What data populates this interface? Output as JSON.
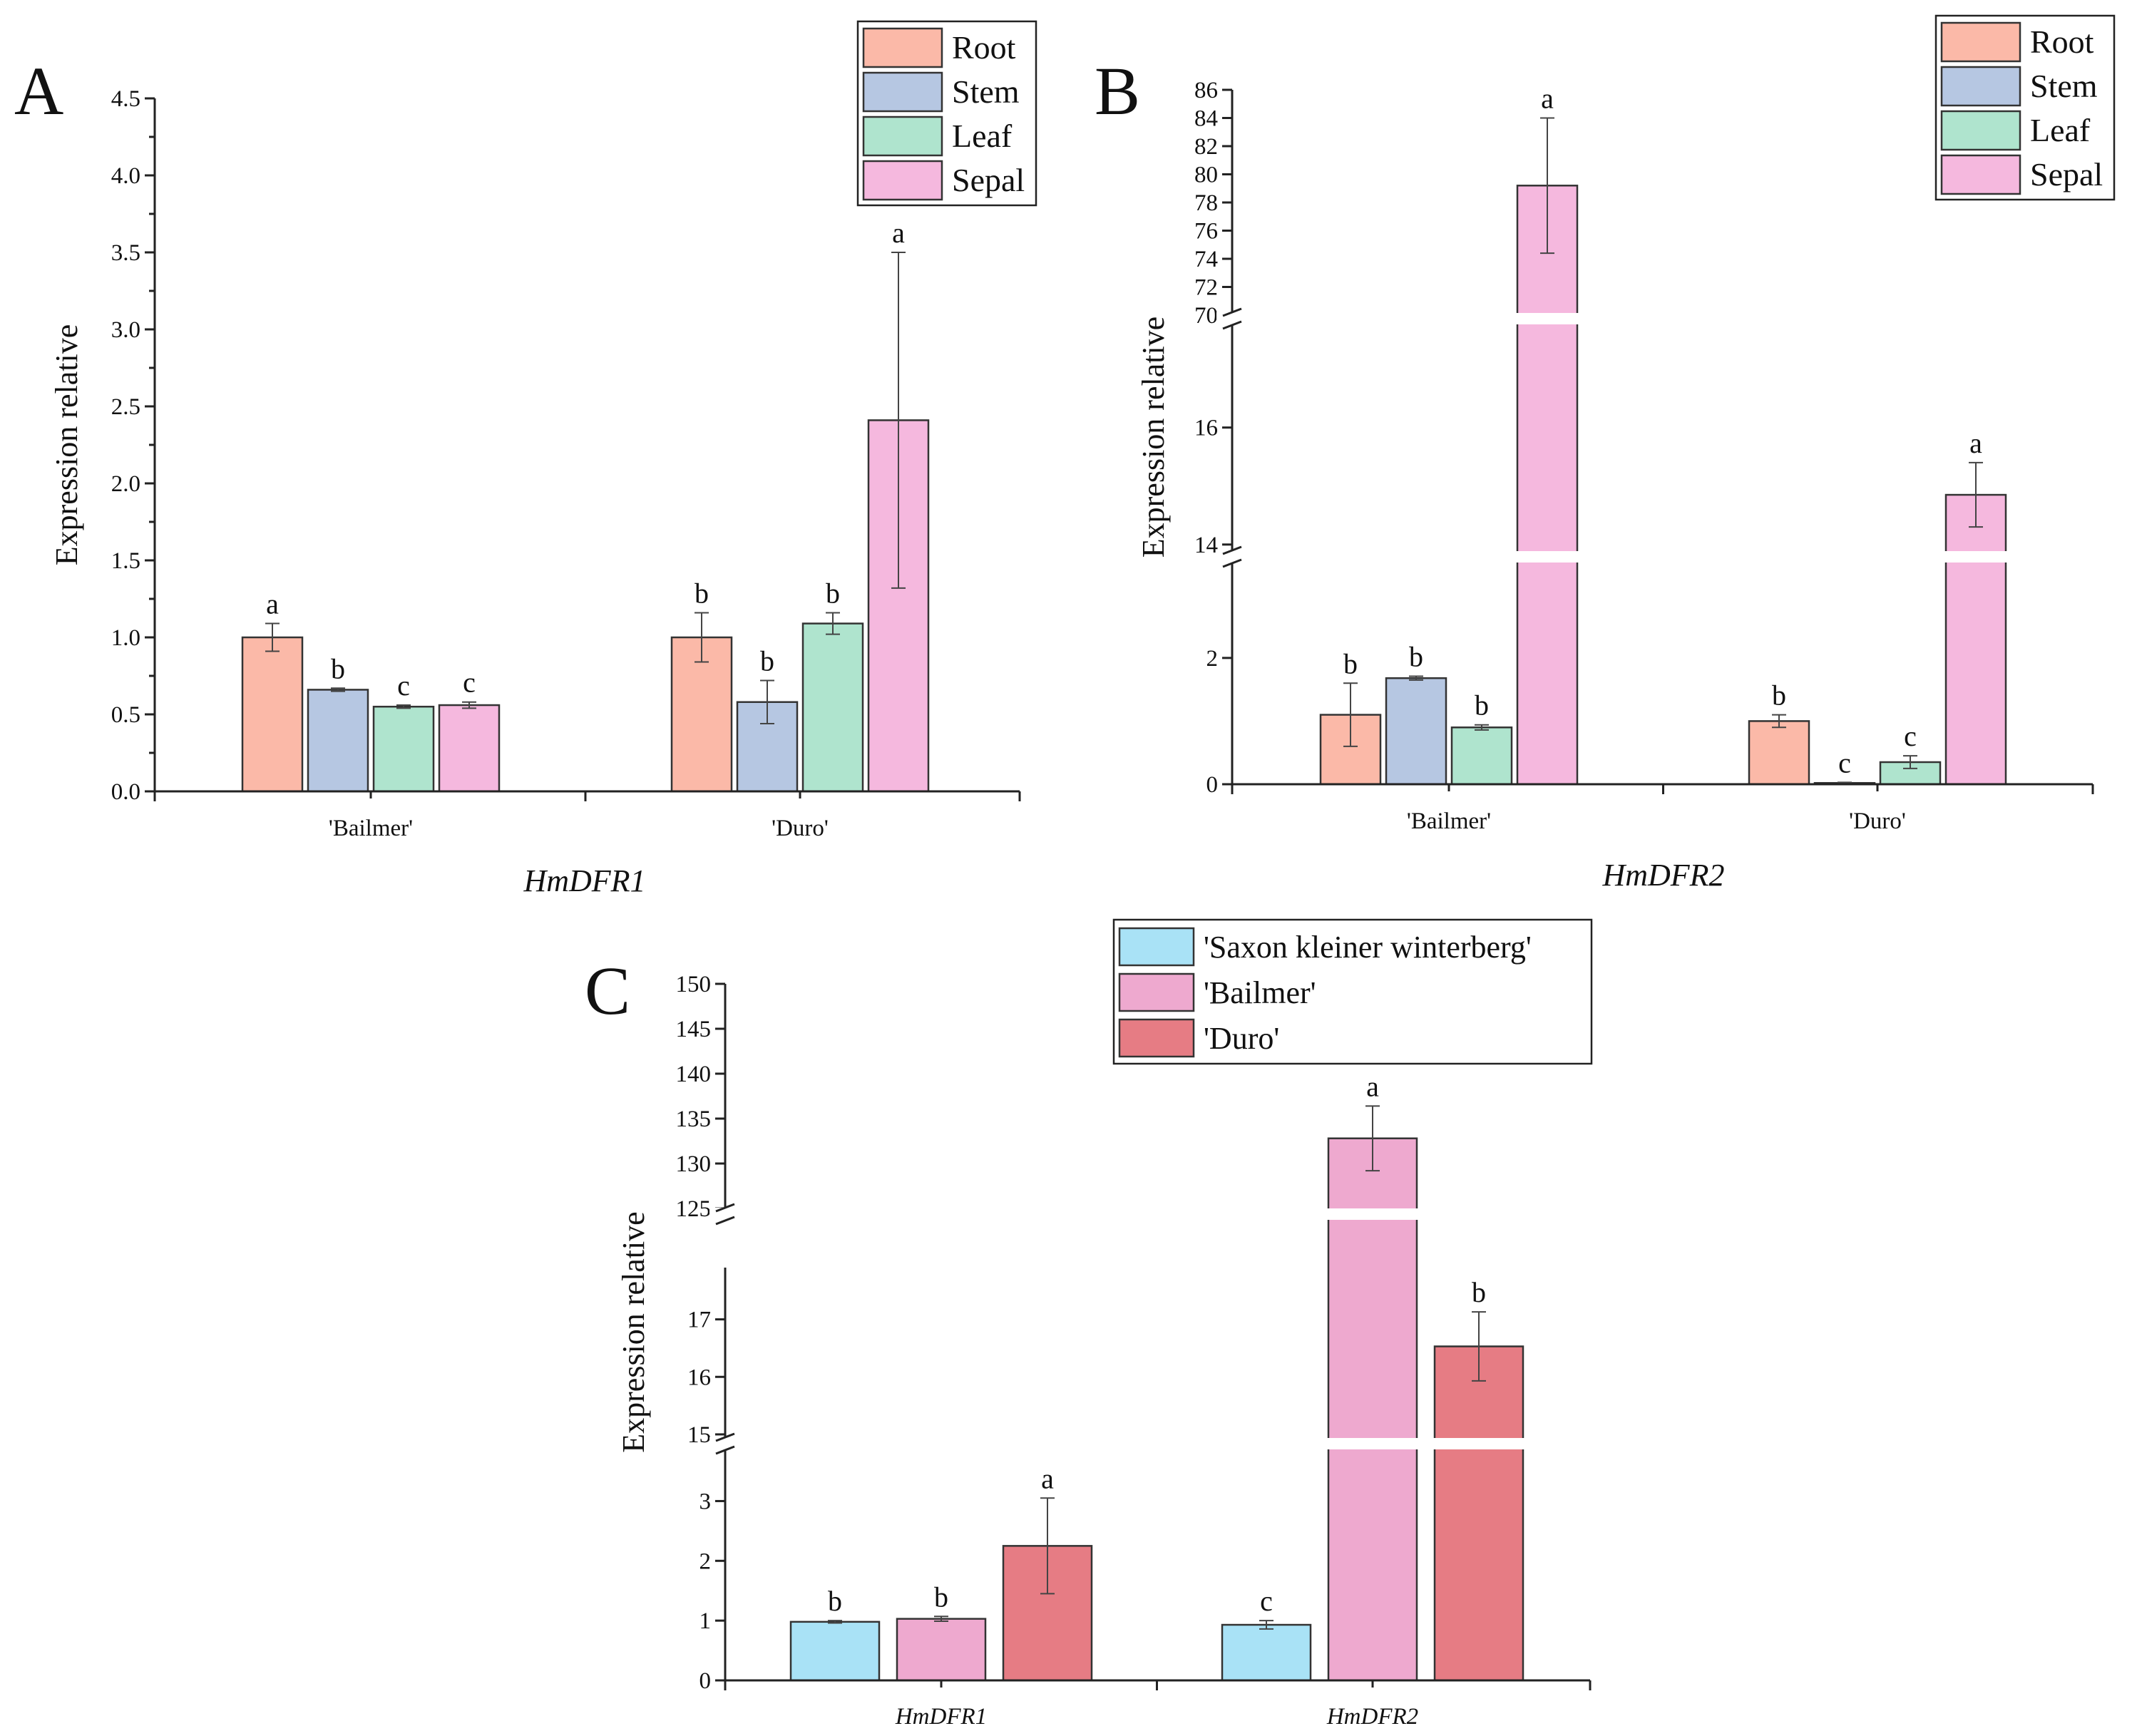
{
  "colors": {
    "root": "#FBB9A8",
    "stem": "#B6C7E2",
    "leaf": "#AFE4CE",
    "sepal": "#F5B8DE",
    "saxon": "#A9E2F6",
    "bailmer": "#EEA9CF",
    "duro": "#E67C84",
    "break_gap": "#ffffff"
  },
  "chart_data": [
    {
      "id": "A",
      "type": "bar",
      "panel_label": "A",
      "title": "",
      "xlabel": "HmDFR1",
      "ylabel": "Expression relative",
      "categories": [
        "'Bailmer'",
        "'Duro'"
      ],
      "ylim": [
        0,
        4.5
      ],
      "yticks": [
        "0.0",
        "0.5",
        "1.0",
        "1.5",
        "2.0",
        "2.5",
        "3.0",
        "3.5",
        "4.0",
        "4.5"
      ],
      "legend_position": "top-right",
      "series": [
        {
          "name": "Root",
          "color_key": "root",
          "values": [
            1.0,
            1.0
          ],
          "errors": [
            0.09,
            0.16
          ],
          "letters": [
            "a",
            "b"
          ]
        },
        {
          "name": "Stem",
          "color_key": "stem",
          "values": [
            0.66,
            0.58
          ],
          "errors": [
            0.01,
            0.14
          ],
          "letters": [
            "b",
            "b"
          ]
        },
        {
          "name": "Leaf",
          "color_key": "leaf",
          "values": [
            0.55,
            1.09
          ],
          "errors": [
            0.01,
            0.07
          ],
          "letters": [
            "c",
            "b"
          ]
        },
        {
          "name": "Sepal",
          "color_key": "sepal",
          "values": [
            0.56,
            2.41
          ],
          "errors": [
            0.02,
            1.09
          ],
          "letters": [
            "c",
            "a"
          ]
        }
      ]
    },
    {
      "id": "B",
      "type": "bar",
      "panel_label": "B",
      "title": "",
      "xlabel": "HmDFR2",
      "ylabel": "Expression relative",
      "categories": [
        "'Bailmer'",
        "'Duro'"
      ],
      "y_segments": [
        {
          "range": [
            0,
            3.5
          ],
          "ticks": [
            "0",
            "2"
          ]
        },
        {
          "range": [
            13.9,
            17.8
          ],
          "ticks": [
            "14",
            "16"
          ]
        },
        {
          "range": [
            70,
            86
          ],
          "ticks": [
            "70",
            "72",
            "74",
            "76",
            "78",
            "80",
            "82",
            "84",
            "86"
          ]
        }
      ],
      "legend_position": "top-right",
      "series": [
        {
          "name": "Root",
          "color_key": "root",
          "values": [
            1.1,
            1.0
          ],
          "errors": [
            0.5,
            0.1
          ],
          "letters": [
            "b",
            "b"
          ]
        },
        {
          "name": "Stem",
          "color_key": "stem",
          "values": [
            1.68,
            0.02
          ],
          "errors": [
            0.03,
            0.01
          ],
          "letters": [
            "b",
            "c"
          ]
        },
        {
          "name": "Leaf",
          "color_key": "leaf",
          "values": [
            0.9,
            0.35
          ],
          "errors": [
            0.04,
            0.1
          ],
          "letters": [
            "b",
            "c"
          ]
        },
        {
          "name": "Sepal",
          "color_key": "sepal",
          "values": [
            79.2,
            14.85
          ],
          "errors": [
            4.8,
            0.55
          ],
          "letters": [
            "a",
            "a"
          ]
        }
      ]
    },
    {
      "id": "C",
      "type": "bar",
      "panel_label": "C",
      "title": "",
      "xlabel": "",
      "ylabel": "Expression relative",
      "categories": [
        "HmDFR1",
        "HmDFR2"
      ],
      "y_segments": [
        {
          "range": [
            0,
            3.9
          ],
          "ticks": [
            "0",
            "1",
            "2",
            "3"
          ]
        },
        {
          "range": [
            14.9,
            17.9
          ],
          "ticks": [
            "15",
            "16",
            "17"
          ]
        },
        {
          "range": [
            125,
            150
          ],
          "ticks": [
            "125",
            "130",
            "135",
            "140",
            "145",
            "150"
          ]
        }
      ],
      "legend_position": "top-right",
      "series": [
        {
          "name": "'Saxon kleiner winterberg'",
          "color_key": "saxon",
          "values": [
            0.98,
            0.93
          ],
          "errors": [
            0.02,
            0.07
          ],
          "letters": [
            "b",
            "c"
          ]
        },
        {
          "name": "'Bailmer'",
          "color_key": "bailmer",
          "values": [
            1.03,
            132.8
          ],
          "errors": [
            0.04,
            3.6
          ],
          "letters": [
            "b",
            "a"
          ]
        },
        {
          "name": "'Duro'",
          "color_key": "duro",
          "values": [
            2.25,
            16.53
          ],
          "errors": [
            0.8,
            0.6
          ],
          "letters": [
            "a",
            "b"
          ]
        }
      ]
    }
  ]
}
